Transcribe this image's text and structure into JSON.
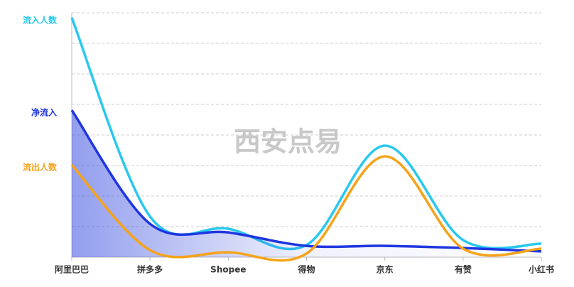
{
  "chart_data": {
    "type": "line",
    "watermark": "西安点易",
    "categories": [
      "阿里巴巴",
      "拼多多",
      "Shopee",
      "得物",
      "京东",
      "有赞",
      "小红书"
    ],
    "series": [
      {
        "name": "流入人数",
        "color": "#29c8ee",
        "values": [
          7.84,
          1.33,
          0.93,
          0.4,
          3.65,
          0.56,
          0.44
        ]
      },
      {
        "name": "净流入",
        "color": "#1f36e0",
        "values": [
          4.81,
          1.09,
          0.81,
          0.37,
          0.37,
          0.3,
          0.19
        ]
      },
      {
        "name": "流出人数",
        "color": "#f5a31a",
        "values": [
          3.02,
          0.23,
          0.16,
          0.12,
          3.3,
          0.28,
          0.28
        ]
      }
    ],
    "ylim": [
      0,
      8
    ],
    "yticks": [
      1,
      2,
      3,
      4,
      5,
      6,
      7,
      8
    ],
    "grid": true
  }
}
